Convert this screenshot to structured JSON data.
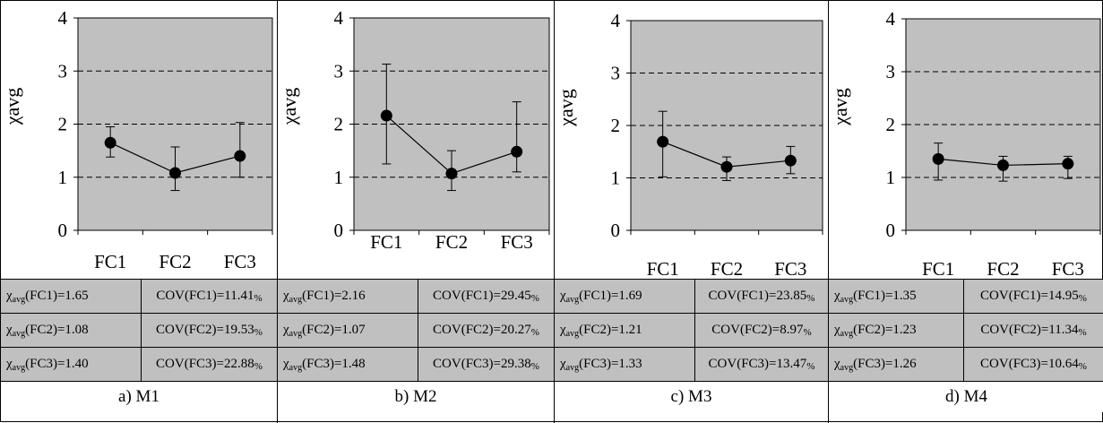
{
  "chart_data": [
    {
      "type": "line",
      "caption": "a) M1",
      "ylabel": "χavg",
      "ylim": [
        0,
        4
      ],
      "yticks": [
        "0",
        "1",
        "2",
        "3",
        "4"
      ],
      "categories": [
        "FC1",
        "FC2",
        "FC3"
      ],
      "series": [
        {
          "values": [
            1.65,
            1.08,
            1.4
          ],
          "err_low": [
            1.38,
            0.75,
            1.0
          ],
          "err_high": [
            1.95,
            1.57,
            2.03
          ]
        }
      ],
      "stats": [
        {
          "chi_value": "1.65",
          "cov_label": "COV(FC1)=11.41",
          "cov_unit": "%"
        },
        {
          "chi_value": "1.08",
          "cov_label": "COV(FC2)=19.53",
          "cov_unit": "%"
        },
        {
          "chi_value": "1.40",
          "cov_label": "COV(FC3)=22.88",
          "cov_unit": "%"
        }
      ]
    },
    {
      "type": "line",
      "caption": "b) M2",
      "ylabel": "χavg",
      "ylim": [
        0,
        4
      ],
      "yticks": [
        "0",
        "1",
        "2",
        "3",
        "4"
      ],
      "categories": [
        "FC1",
        "FC2",
        "FC3"
      ],
      "series": [
        {
          "values": [
            2.16,
            1.07,
            1.48
          ],
          "err_low": [
            1.25,
            0.75,
            1.1
          ],
          "err_high": [
            3.13,
            1.5,
            2.42
          ]
        }
      ],
      "stats": [
        {
          "chi_value": "2.16",
          "cov_label": "COV(FC1)=29.45",
          "cov_unit": "%"
        },
        {
          "chi_value": "1.07",
          "cov_label": "COV(FC2)=20.27",
          "cov_unit": "%"
        },
        {
          "chi_value": "1.48",
          "cov_label": "COV(FC3)=29.38",
          "cov_unit": "%"
        }
      ]
    },
    {
      "type": "line",
      "caption": "c) M3",
      "ylabel": "χavg",
      "ylim": [
        0,
        4
      ],
      "yticks": [
        "0",
        "1",
        "2",
        "3",
        "4"
      ],
      "categories": [
        "FC1",
        "FC2",
        "FC3"
      ],
      "series": [
        {
          "values": [
            1.69,
            1.21,
            1.33
          ],
          "err_low": [
            1.02,
            0.95,
            1.08
          ],
          "err_high": [
            2.27,
            1.4,
            1.6
          ]
        }
      ],
      "stats": [
        {
          "chi_value": "1.69",
          "cov_label": "COV(FC1)=23.85",
          "cov_unit": "%"
        },
        {
          "chi_value": "1.21",
          "cov_label": "COV(FC2)=8.97",
          "cov_unit": "%"
        },
        {
          "chi_value": "1.33",
          "cov_label": "COV(FC3)=13.47",
          "cov_unit": "%"
        }
      ]
    },
    {
      "type": "line",
      "caption": "d) M4",
      "ylabel": "χavg",
      "ylim": [
        0,
        4
      ],
      "yticks": [
        "0",
        "1",
        "2",
        "3",
        "4"
      ],
      "categories": [
        "FC1",
        "FC2",
        "FC3"
      ],
      "series": [
        {
          "values": [
            1.35,
            1.23,
            1.26
          ],
          "err_low": [
            0.95,
            0.93,
            0.98
          ],
          "err_high": [
            1.65,
            1.4,
            1.4
          ]
        }
      ],
      "stats": [
        {
          "chi_value": "1.35",
          "cov_label": "COV(FC1)=14.95",
          "cov_unit": "%"
        },
        {
          "chi_value": "1.23",
          "cov_label": "COV(FC2)=11.34",
          "cov_unit": "%"
        },
        {
          "chi_value": "1.26",
          "cov_label": "COV(FC3)=10.64",
          "cov_unit": "%"
        }
      ]
    }
  ],
  "table": {
    "chi_symbol": "χ",
    "chi_sub": "avg",
    "fc_labels": [
      "(FC1)=",
      "(FC2)=",
      "(FC3)="
    ]
  },
  "colors": {
    "plot_bg": "#c0c0c0",
    "grid": "#000000",
    "marker": "#000000"
  }
}
